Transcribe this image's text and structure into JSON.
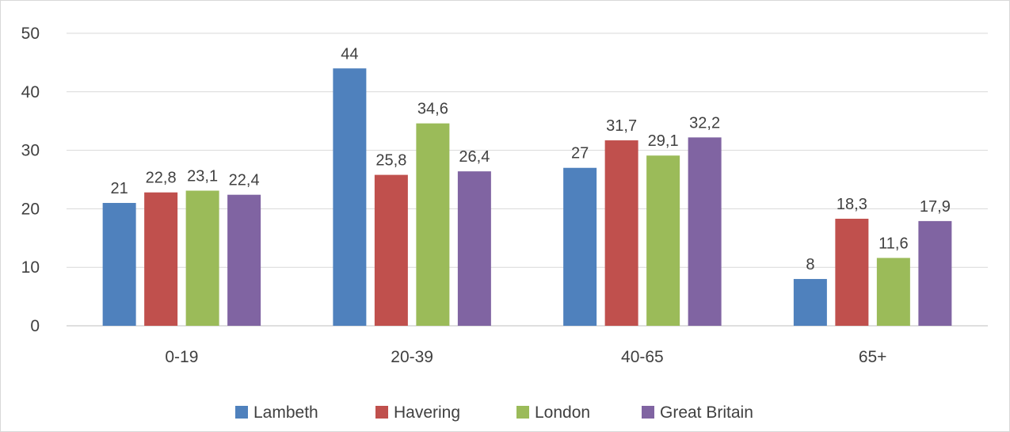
{
  "chart_data": {
    "type": "bar",
    "title": "",
    "xlabel": "",
    "ylabel": "",
    "categories": [
      "0-19",
      "20-39",
      "40-65",
      "65+"
    ],
    "series": [
      {
        "name": "Lambeth",
        "color": "#4f81bd",
        "values": [
          21,
          44,
          27,
          8
        ],
        "labels": [
          "21",
          "44",
          "27",
          "8"
        ]
      },
      {
        "name": "Havering",
        "color": "#c0504d",
        "values": [
          22.8,
          25.8,
          31.7,
          18.3
        ],
        "labels": [
          "22,8",
          "25,8",
          "31,7",
          "18,3"
        ]
      },
      {
        "name": "London",
        "color": "#9bbb59",
        "values": [
          23.1,
          34.6,
          29.1,
          11.6
        ],
        "labels": [
          "23,1",
          "34,6",
          "29,1",
          "11,6"
        ]
      },
      {
        "name": "Great Britain",
        "color": "#8064a2",
        "values": [
          22.4,
          26.4,
          32.2,
          17.9
        ],
        "labels": [
          "22,4",
          "26,4",
          "32,2",
          "17,9"
        ]
      }
    ],
    "ylim": [
      0,
      50
    ],
    "yticks": [
      "0",
      "10",
      "20",
      "30",
      "40",
      "50"
    ],
    "grid": true,
    "legend": "bottom",
    "data_labels": true
  }
}
